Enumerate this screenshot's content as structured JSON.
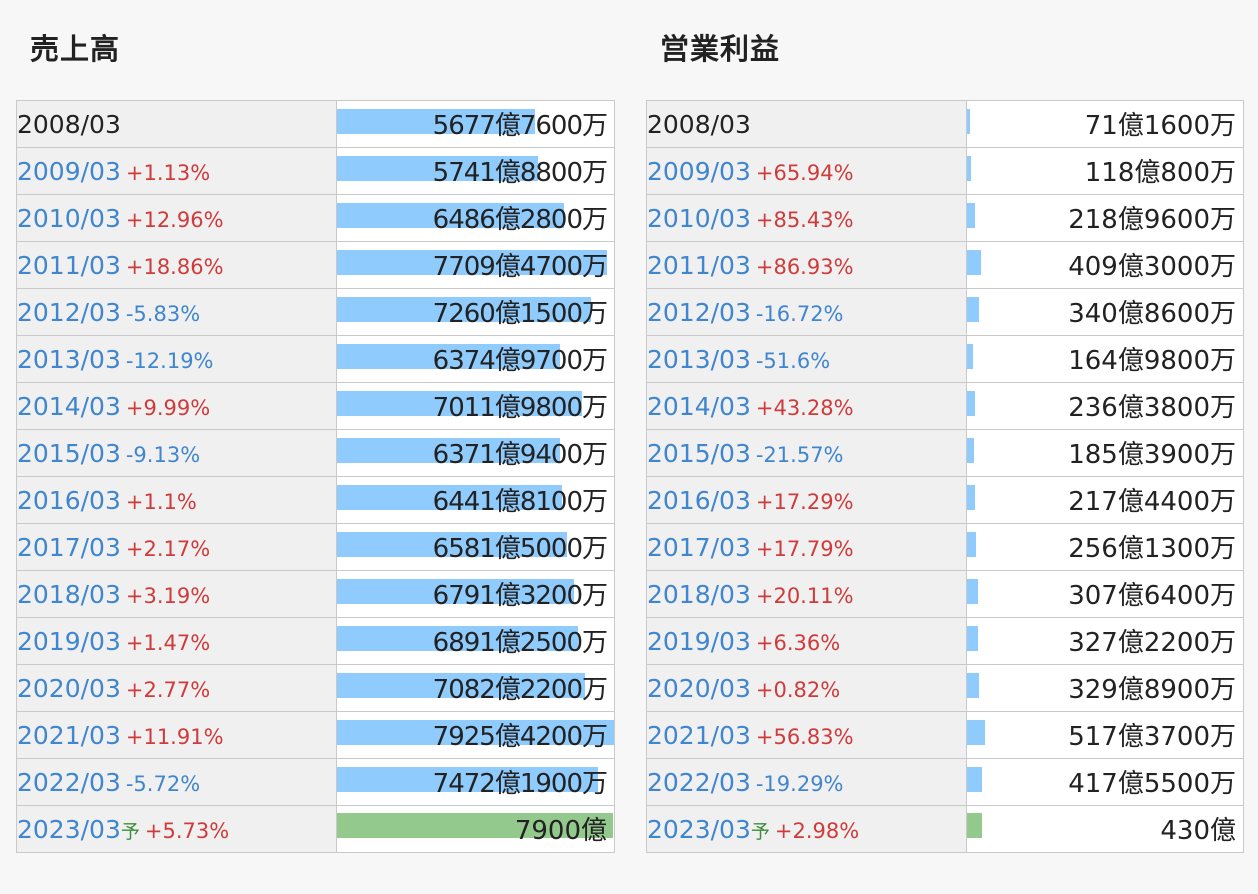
{
  "chart_data": [
    {
      "type": "bar",
      "title": "売上高",
      "xmax": 7925.42,
      "rows": [
        {
          "period": "2008/03",
          "change": "",
          "forecast": false,
          "value": 5677.76,
          "label": "5677億7600万"
        },
        {
          "period": "2009/03",
          "change": "+1.13%",
          "forecast": false,
          "value": 5741.88,
          "label": "5741億8800万"
        },
        {
          "period": "2010/03",
          "change": "+12.96%",
          "forecast": false,
          "value": 6486.28,
          "label": "6486億2800万"
        },
        {
          "period": "2011/03",
          "change": "+18.86%",
          "forecast": false,
          "value": 7709.47,
          "label": "7709億4700万"
        },
        {
          "period": "2012/03",
          "change": "-5.83%",
          "forecast": false,
          "value": 7260.15,
          "label": "7260億1500万"
        },
        {
          "period": "2013/03",
          "change": "-12.19%",
          "forecast": false,
          "value": 6374.97,
          "label": "6374億9700万"
        },
        {
          "period": "2014/03",
          "change": "+9.99%",
          "forecast": false,
          "value": 7011.98,
          "label": "7011億9800万"
        },
        {
          "period": "2015/03",
          "change": "-9.13%",
          "forecast": false,
          "value": 6371.94,
          "label": "6371億9400万"
        },
        {
          "period": "2016/03",
          "change": "+1.1%",
          "forecast": false,
          "value": 6441.81,
          "label": "6441億8100万"
        },
        {
          "period": "2017/03",
          "change": "+2.17%",
          "forecast": false,
          "value": 6581.5,
          "label": "6581億5000万"
        },
        {
          "period": "2018/03",
          "change": "+3.19%",
          "forecast": false,
          "value": 6791.32,
          "label": "6791億3200万"
        },
        {
          "period": "2019/03",
          "change": "+1.47%",
          "forecast": false,
          "value": 6891.25,
          "label": "6891億2500万"
        },
        {
          "period": "2020/03",
          "change": "+2.77%",
          "forecast": false,
          "value": 7082.22,
          "label": "7082億2200万"
        },
        {
          "period": "2021/03",
          "change": "+11.91%",
          "forecast": false,
          "value": 7925.42,
          "label": "7925億4200万"
        },
        {
          "period": "2022/03",
          "change": "-5.72%",
          "forecast": false,
          "value": 7472.19,
          "label": "7472億1900万"
        },
        {
          "period": "2023/03",
          "change": "+5.73%",
          "forecast": true,
          "value": 7900,
          "label": "7900億"
        }
      ]
    },
    {
      "type": "bar",
      "title": "営業利益",
      "xmax": 7925.42,
      "rows": [
        {
          "period": "2008/03",
          "change": "",
          "forecast": false,
          "value": 71.16,
          "label": "71億1600万"
        },
        {
          "period": "2009/03",
          "change": "+65.94%",
          "forecast": false,
          "value": 118.08,
          "label": "118億800万"
        },
        {
          "period": "2010/03",
          "change": "+85.43%",
          "forecast": false,
          "value": 218.96,
          "label": "218億9600万"
        },
        {
          "period": "2011/03",
          "change": "+86.93%",
          "forecast": false,
          "value": 409.3,
          "label": "409億3000万"
        },
        {
          "period": "2012/03",
          "change": "-16.72%",
          "forecast": false,
          "value": 340.86,
          "label": "340億8600万"
        },
        {
          "period": "2013/03",
          "change": "-51.6%",
          "forecast": false,
          "value": 164.98,
          "label": "164億9800万"
        },
        {
          "period": "2014/03",
          "change": "+43.28%",
          "forecast": false,
          "value": 236.38,
          "label": "236億3800万"
        },
        {
          "period": "2015/03",
          "change": "-21.57%",
          "forecast": false,
          "value": 185.39,
          "label": "185億3900万"
        },
        {
          "period": "2016/03",
          "change": "+17.29%",
          "forecast": false,
          "value": 217.44,
          "label": "217億4400万"
        },
        {
          "period": "2017/03",
          "change": "+17.79%",
          "forecast": false,
          "value": 256.13,
          "label": "256億1300万"
        },
        {
          "period": "2018/03",
          "change": "+20.11%",
          "forecast": false,
          "value": 307.64,
          "label": "307億6400万"
        },
        {
          "period": "2019/03",
          "change": "+6.36%",
          "forecast": false,
          "value": 327.22,
          "label": "327億2200万"
        },
        {
          "period": "2020/03",
          "change": "+0.82%",
          "forecast": false,
          "value": 329.89,
          "label": "329億8900万"
        },
        {
          "period": "2021/03",
          "change": "+56.83%",
          "forecast": false,
          "value": 517.37,
          "label": "517億3700万"
        },
        {
          "period": "2022/03",
          "change": "-19.29%",
          "forecast": false,
          "value": 417.55,
          "label": "417億5500万"
        },
        {
          "period": "2023/03",
          "change": "+2.98%",
          "forecast": true,
          "value": 430,
          "label": "430億"
        }
      ]
    }
  ],
  "forecast_mark": "予",
  "colors": {
    "bar": "#8fcbfd",
    "forecast_bar": "#93c98d",
    "increase": "#cf3b3b",
    "decrease": "#3f86cf",
    "period": "#3f86cf"
  }
}
